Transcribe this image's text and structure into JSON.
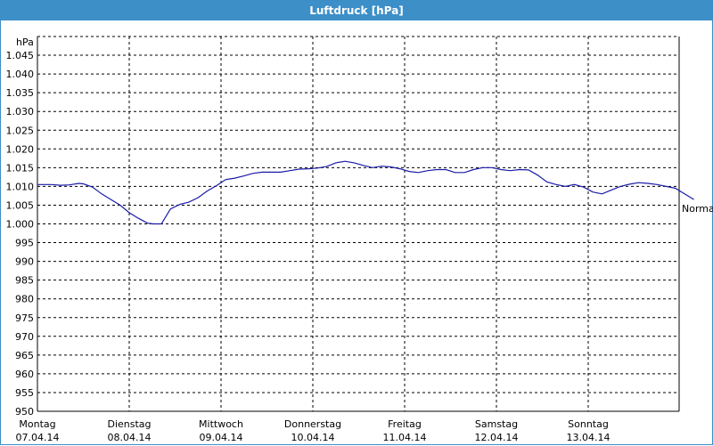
{
  "window": {
    "title": "Luftdruck [hPa]"
  },
  "colors": {
    "titlebar": "#3d8fc8",
    "line": "#1a1aa8",
    "grid": "#000000"
  },
  "chart_data": {
    "type": "line",
    "title": "Luftdruck [hPa]",
    "ylabel": "hPa",
    "ylim": [
      950,
      1050
    ],
    "yticks": [
      950,
      955,
      960,
      965,
      970,
      975,
      980,
      985,
      990,
      995,
      1000,
      1005,
      1010,
      1015,
      1020,
      1025,
      1030,
      1035,
      1040,
      1045
    ],
    "ytick_labels": [
      "950",
      "955",
      "960",
      "965",
      "970",
      "975",
      "980",
      "985",
      "990",
      "995",
      "1.000",
      "1.005",
      "1.010",
      "1.015",
      "1.020",
      "1.025",
      "1.030",
      "1.035",
      "1.040",
      "1.045"
    ],
    "x_categories": [
      {
        "day": "Montag",
        "date": "07.04.14"
      },
      {
        "day": "Dienstag",
        "date": "08.04.14"
      },
      {
        "day": "Mittwoch",
        "date": "09.04.14"
      },
      {
        "day": "Donnerstag",
        "date": "10.04.14"
      },
      {
        "day": "Freitag",
        "date": "11.04.14"
      },
      {
        "day": "Samstag",
        "date": "12.04.14"
      },
      {
        "day": "Sonntag",
        "date": "13.04.14"
      }
    ],
    "grid": true,
    "annotation": "Normal",
    "series": [
      {
        "x": [
          0,
          0.15,
          0.25,
          0.35,
          0.45,
          0.5,
          0.6,
          0.7,
          0.8,
          0.9,
          1.0,
          1.1,
          1.2,
          1.26,
          1.35,
          1.45,
          1.55,
          1.65,
          1.75,
          1.85,
          1.95,
          2.05,
          2.15,
          2.25,
          2.35,
          2.45,
          2.55,
          2.65,
          2.75,
          2.85,
          2.95,
          3.05,
          3.15,
          3.25,
          3.35,
          3.45,
          3.55,
          3.65,
          3.75,
          3.85,
          3.95,
          4.05,
          4.15,
          4.25,
          4.35,
          4.45,
          4.55,
          4.65,
          4.75,
          4.85,
          4.95,
          5.05,
          5.15,
          5.25,
          5.35,
          5.45,
          5.55,
          5.65,
          5.75,
          5.85,
          5.95,
          6.05,
          6.15,
          6.25,
          6.35,
          6.45,
          6.55,
          6.65,
          6.75,
          6.85,
          6.95,
          7.05,
          7.15
        ],
        "y": [
          1010.5,
          1010.5,
          1010.3,
          1010.4,
          1010.8,
          1010.7,
          1009.8,
          1008.0,
          1006.5,
          1005.0,
          1003.0,
          1001.5,
          1000.2,
          1000.0,
          1000.0,
          1004.0,
          1005.2,
          1005.8,
          1007.0,
          1008.8,
          1010.2,
          1011.8,
          1012.2,
          1012.8,
          1013.5,
          1013.8,
          1013.8,
          1013.8,
          1014.2,
          1014.6,
          1014.7,
          1014.9,
          1015.3,
          1016.3,
          1016.7,
          1016.3,
          1015.6,
          1015.0,
          1015.4,
          1015.2,
          1014.7,
          1014.0,
          1013.7,
          1014.2,
          1014.5,
          1014.5,
          1013.7,
          1013.7,
          1014.5,
          1015.0,
          1015.0,
          1014.5,
          1014.2,
          1014.5,
          1014.4,
          1013.0,
          1011.2,
          1010.5,
          1010.0,
          1010.5,
          1009.8,
          1008.5,
          1008.0,
          1009.0,
          1010.0,
          1010.6,
          1011.0,
          1010.8,
          1010.5,
          1010.0,
          1009.5,
          1008.0,
          1006.5
        ]
      }
    ]
  }
}
